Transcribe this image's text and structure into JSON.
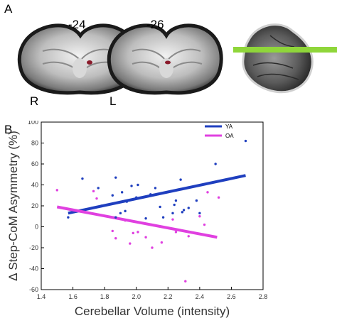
{
  "figure": {
    "panel_a": {
      "label": "A",
      "slice_labels": [
        "-24",
        "-26"
      ],
      "orientation_left": "R",
      "orientation_right": "L",
      "colors": {
        "cluster": "#8a1a2a",
        "plane_marker": "#8fd63a"
      }
    },
    "panel_b": {
      "label": "B"
    }
  },
  "chart_data": {
    "type": "scatter",
    "title": "",
    "xlabel": "Cerebellar Volume (intensity)",
    "ylabel": "Δ Step-CoM Asymmetry (%)",
    "xlim": [
      1.4,
      2.8
    ],
    "ylim": [
      -60,
      100
    ],
    "xticks": [
      "1.4",
      "1.6",
      "1.8",
      "2.0",
      "2.2",
      "2.4",
      "2.6",
      "2.8"
    ],
    "yticks": [
      "-60",
      "-40",
      "-20",
      "0",
      "20",
      "40",
      "60",
      "80",
      "100"
    ],
    "grid": false,
    "legend_position": "top-right",
    "series": [
      {
        "name": "YA",
        "color": "#1f3fbf",
        "points": [
          [
            1.57,
            9
          ],
          [
            1.66,
            46
          ],
          [
            1.76,
            37
          ],
          [
            1.78,
            20
          ],
          [
            1.87,
            47
          ],
          [
            1.85,
            30
          ],
          [
            1.87,
            9
          ],
          [
            1.9,
            13
          ],
          [
            1.91,
            33
          ],
          [
            1.93,
            15
          ],
          [
            1.94,
            24
          ],
          [
            1.97,
            39
          ],
          [
            2.0,
            28
          ],
          [
            2.01,
            40
          ],
          [
            2.06,
            8
          ],
          [
            2.09,
            31
          ],
          [
            2.12,
            37
          ],
          [
            2.15,
            19
          ],
          [
            2.17,
            9
          ],
          [
            2.19,
            33
          ],
          [
            2.23,
            13
          ],
          [
            2.24,
            21
          ],
          [
            2.25,
            25
          ],
          [
            2.28,
            45
          ],
          [
            2.29,
            14
          ],
          [
            2.3,
            16
          ],
          [
            2.33,
            18
          ],
          [
            2.38,
            25
          ],
          [
            2.4,
            13
          ],
          [
            2.5,
            60
          ],
          [
            2.69,
            82
          ]
        ],
        "fit": {
          "x1": 1.57,
          "y1": 13,
          "x2": 2.69,
          "y2": 49
        }
      },
      {
        "name": "OA",
        "color": "#e040e0",
        "points": [
          [
            1.5,
            35
          ],
          [
            1.73,
            34
          ],
          [
            1.75,
            27
          ],
          [
            1.85,
            -4
          ],
          [
            1.87,
            -11
          ],
          [
            1.93,
            6
          ],
          [
            1.96,
            -16
          ],
          [
            1.98,
            -6
          ],
          [
            2.01,
            -5
          ],
          [
            2.06,
            -10
          ],
          [
            2.1,
            -20
          ],
          [
            2.16,
            -15
          ],
          [
            2.23,
            7
          ],
          [
            2.25,
            -5
          ],
          [
            2.31,
            -52
          ],
          [
            2.33,
            -9
          ],
          [
            2.4,
            10
          ],
          [
            2.43,
            2
          ],
          [
            2.45,
            33
          ],
          [
            2.52,
            28
          ]
        ],
        "fit": {
          "x1": 1.5,
          "y1": 19,
          "x2": 2.51,
          "y2": -10
        }
      }
    ]
  }
}
